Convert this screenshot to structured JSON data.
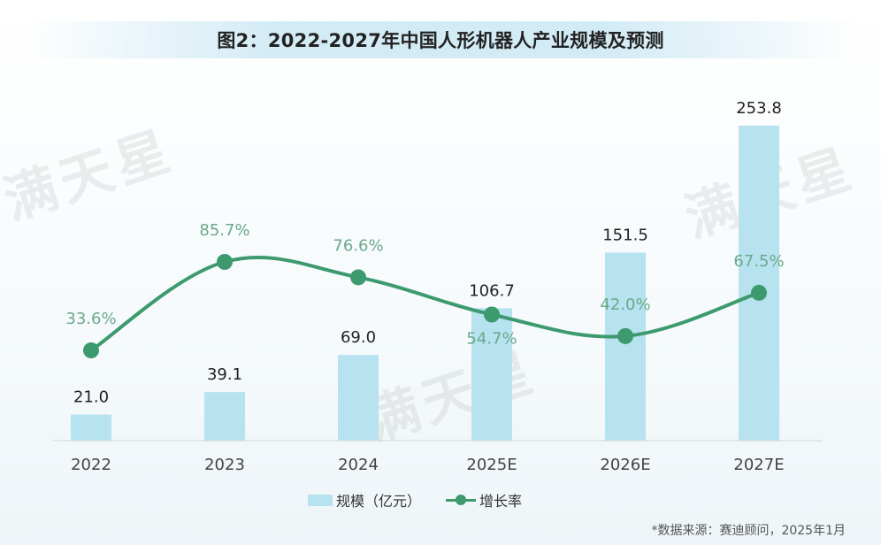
{
  "title": "图2：2022-2027年中国人形机器人产业规模及预测",
  "legend": {
    "bar_label": "规模（亿元）",
    "line_label": "增长率"
  },
  "source": "*数据来源：赛迪顾问，2025年1月",
  "watermark": "满天星",
  "colors": {
    "bar": "#b7e2ef",
    "line": "#3d9a6e",
    "rate_label": "#6aa98a",
    "value_label": "#222222",
    "title_band": "#d3ebf5"
  },
  "chart_data": {
    "type": "bar",
    "title": "图2：2022-2027年中国人形机器人产业规模及预测",
    "categories": [
      "2022",
      "2023",
      "2024",
      "2025E",
      "2026E",
      "2027E"
    ],
    "series": [
      {
        "name": "规模（亿元）",
        "type": "bar",
        "values": [
          21.0,
          39.1,
          69.0,
          106.7,
          151.5,
          253.8
        ],
        "labels": [
          "21.0",
          "39.1",
          "69.0",
          "106.7",
          "151.5",
          "253.8"
        ]
      },
      {
        "name": "增长率",
        "type": "line",
        "values": [
          33.6,
          85.7,
          76.6,
          54.7,
          42.0,
          67.5
        ],
        "labels": [
          "33.6%",
          "85.7%",
          "76.6%",
          "54.7%",
          "42.0%",
          "67.5%"
        ]
      }
    ],
    "xlabel": "",
    "ylabel": "",
    "grid": false,
    "legend_position": "bottom",
    "source": "*数据来源：赛迪顾问，2025年1月"
  }
}
